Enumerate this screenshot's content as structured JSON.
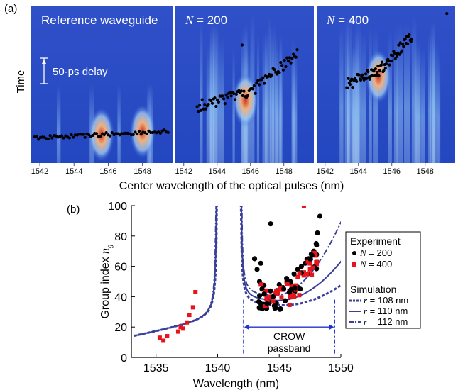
{
  "panel_a": {
    "label": "(a)",
    "ylabel": "Time",
    "xlabel": "Center wavelength of the optical pulses (nm)",
    "delay_label": "50-ps delay",
    "panels": [
      {
        "title": "Reference waveguide",
        "ticks": [
          "1542",
          "1544",
          "1546",
          "1548"
        ]
      },
      {
        "title_var": "N",
        "title_rest": " = 200",
        "ticks": [
          "1542",
          "1544",
          "1546",
          "1548"
        ]
      },
      {
        "title_var": "N",
        "title_rest": " = 400",
        "ticks": [
          "1542",
          "1544",
          "1546",
          "1548"
        ]
      }
    ]
  },
  "panel_b": {
    "label": "(b)",
    "passband_label_1": "CROW",
    "passband_label_2": "passband",
    "legend": {
      "experiment_title": "Experiment",
      "exp_items": [
        {
          "var": "N",
          "text": " = 200",
          "color": "#000000",
          "marker": "circle"
        },
        {
          "var": "N",
          "text": " = 400",
          "color": "#e8141b",
          "marker": "square"
        }
      ],
      "simulation_title": "Simulation",
      "sim_items": [
        {
          "var": "r",
          "text": " = 108 nm",
          "style": "dotted"
        },
        {
          "var": "r",
          "text": " = 110 nm",
          "style": "solid"
        },
        {
          "var": "r",
          "text": " = 112 nm",
          "style": "dashdot"
        }
      ]
    }
  },
  "chart_data": [
    {
      "type": "heatmap",
      "title": "Reference waveguide",
      "xlabel": "Center wavelength of the optical pulses (nm)",
      "ylabel": "Time",
      "xlim": [
        1541.5,
        1549.8
      ],
      "annotation": "50-ps delay",
      "series": [
        {
          "x": [
            1541.7,
            1543,
            1544,
            1545,
            1546,
            1547,
            1548,
            1549.5
          ],
          "y": [
            0,
            0.2,
            0.4,
            0.6,
            0.8,
            1.0,
            1.2,
            1.4
          ]
        }
      ]
    },
    {
      "type": "heatmap",
      "title": "N = 200",
      "xlim": [
        1541.5,
        1549.8
      ],
      "series": [
        {
          "x": [
            1542.8,
            1543.5,
            1544.5,
            1545.5,
            1546.2,
            1547,
            1547.8,
            1548.8
          ],
          "y": [
            5.0,
            5.2,
            5.4,
            5.6,
            6.0,
            6.6,
            7.4,
            8.2
          ]
        }
      ]
    },
    {
      "type": "heatmap",
      "title": "N = 400",
      "xlim": [
        1541.5,
        1549.8
      ],
      "series": [
        {
          "x": [
            1543.3,
            1544.0,
            1544.8,
            1545.4,
            1546.0,
            1546.6,
            1547.2
          ],
          "y": [
            8.0,
            8.3,
            8.6,
            9.0,
            9.5,
            10.2,
            11.0
          ]
        }
      ]
    },
    {
      "type": "scatter",
      "xlabel": "Wavelength (nm)",
      "ylabel": "Group index n_g",
      "xlim": [
        1533,
        1550
      ],
      "ylim": [
        0,
        100
      ],
      "xticks": [
        1535,
        1540,
        1545,
        1550
      ],
      "yticks": [
        0,
        20,
        40,
        60,
        80,
        100
      ],
      "annotation": "CROW passband",
      "passband": [
        1542.1,
        1549.5
      ],
      "series": [
        {
          "name": "N = 200",
          "x": [
            1543.0,
            1543.2,
            1543.4,
            1543.6,
            1543.8,
            1544.0,
            1544.2,
            1544.5,
            1544.8,
            1545.0,
            1545.3,
            1545.6,
            1545.9,
            1546.2,
            1546.5,
            1546.8,
            1547.1,
            1547.4,
            1547.6,
            1547.8,
            1548.0,
            1548.1,
            1548.3,
            1544.3,
            1544.6,
            1545.1,
            1546.0,
            1546.7,
            1547.3,
            1543.5
          ],
          "y": [
            65,
            58,
            50,
            45,
            42,
            38,
            36,
            40,
            44,
            48,
            46,
            52,
            50,
            55,
            58,
            60,
            62,
            65,
            68,
            70,
            75,
            82,
            93,
            88,
            34,
            32,
            40,
            45,
            55,
            62
          ]
        },
        {
          "name": "N = 400",
          "x": [
            1535.3,
            1535.6,
            1535.9,
            1536.8,
            1537.0,
            1537.2,
            1537.5,
            1537.7,
            1538.0,
            1538.2,
            1543.5,
            1543.9,
            1544.3,
            1544.7,
            1545.2,
            1545.6,
            1546.0,
            1546.5,
            1547.0,
            1547.5,
            1548.0,
            1547.0
          ],
          "y": [
            13,
            11,
            14,
            17,
            20,
            19,
            23,
            28,
            33,
            43,
            48,
            44,
            40,
            42,
            45,
            50,
            47,
            53,
            56,
            58,
            63,
            100
          ]
        },
        {
          "name": "r = 108 nm",
          "x": [
            1533.5,
            1536,
            1538,
            1539.2,
            1539.7,
            1540.0,
            1541.8,
            1542.1,
            1542.5,
            1543.5,
            1545,
            1547,
            1548.5,
            1549.6
          ],
          "y": [
            15,
            16,
            22,
            40,
            80,
            100,
            100,
            70,
            50,
            36,
            33,
            37,
            48,
            58
          ]
        },
        {
          "name": "r = 110 nm",
          "x": [
            1533.5,
            1536,
            1538,
            1539.2,
            1539.7,
            1540.0,
            1541.8,
            1542.1,
            1542.5,
            1543.5,
            1545,
            1547,
            1548.5,
            1549.6
          ],
          "y": [
            15,
            17,
            23,
            42,
            85,
            100,
            100,
            72,
            52,
            39,
            37,
            43,
            60,
            80
          ]
        },
        {
          "name": "r = 112 nm",
          "x": [
            1533.5,
            1536,
            1538,
            1539.2,
            1539.7,
            1540.0,
            1541.8,
            1542.1,
            1542.5,
            1543.5,
            1545,
            1547,
            1548.5,
            1549.6
          ],
          "y": [
            15,
            16,
            22,
            41,
            82,
            100,
            100,
            75,
            55,
            42,
            41,
            50,
            70,
            97
          ]
        }
      ]
    }
  ]
}
